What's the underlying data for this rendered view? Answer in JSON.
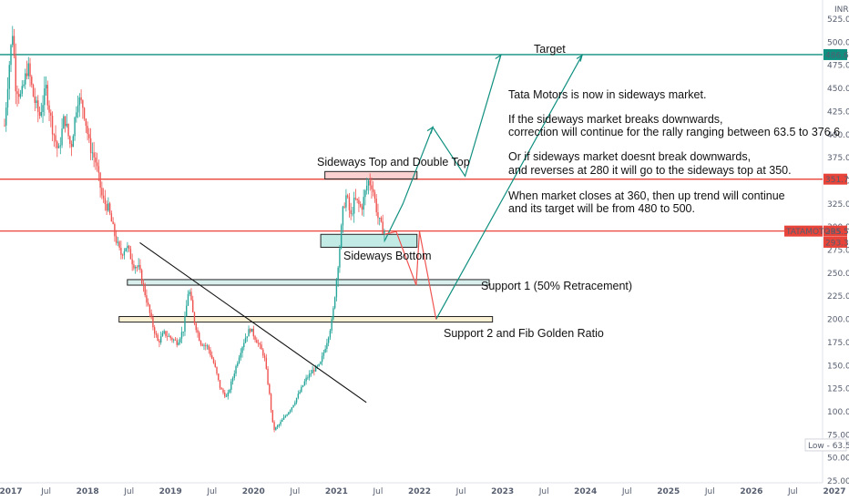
{
  "currency": "INR",
  "chart_data": {
    "type": "candlestick",
    "symbol": "TATAMOTORS",
    "x_ticks": [
      "2017",
      "Jul",
      "2018",
      "Jul",
      "2019",
      "Jul",
      "2020",
      "Jul",
      "2021",
      "Jul",
      "2022",
      "Jul",
      "2023",
      "Jul",
      "2024",
      "Jul",
      "2025",
      "Jul",
      "2026",
      "Jul",
      "2027"
    ],
    "y_ticks": [
      "525.00",
      "500.00",
      "475.00",
      "450.00",
      "425.00",
      "400.00",
      "375.00",
      "350.00",
      "325.00",
      "300.00",
      "275.00",
      "250.00",
      "225.00",
      "200.00",
      "175.00",
      "150.00",
      "125.00",
      "100.00",
      "75.00",
      "50.00",
      "25.00"
    ],
    "ylim": [
      25,
      540
    ],
    "price_labels": [
      {
        "text": "486.60",
        "value": 486.6,
        "color": "#0f8f7f"
      },
      {
        "text": "351.75",
        "value": 351.75,
        "color": "#e8443a"
      },
      {
        "text": "295.55",
        "value": 295.55,
        "color": "#e8443a"
      },
      {
        "text": "293.30",
        "value": 293.3,
        "color": "#e8443a"
      }
    ],
    "symbol_tag": "TATAMOTORS",
    "low_label": "Low - 63.50",
    "horizontal_lines": [
      {
        "value": 486.6,
        "color": "#0f8f7f"
      },
      {
        "value": 351.75,
        "color": "#e8443a"
      },
      {
        "value": 295.55,
        "color": "#e8443a"
      }
    ],
    "ohlc_path": [
      [
        2017.0,
        410
      ],
      [
        2017.05,
        470
      ],
      [
        2017.1,
        515
      ],
      [
        2017.13,
        455
      ],
      [
        2017.2,
        440
      ],
      [
        2017.28,
        475
      ],
      [
        2017.35,
        440
      ],
      [
        2017.42,
        420
      ],
      [
        2017.5,
        450
      ],
      [
        2017.57,
        410
      ],
      [
        2017.65,
        380
      ],
      [
        2017.72,
        420
      ],
      [
        2017.8,
        385
      ],
      [
        2017.88,
        440
      ],
      [
        2017.95,
        430
      ],
      [
        2018.02,
        390
      ],
      [
        2018.1,
        370
      ],
      [
        2018.18,
        330
      ],
      [
        2018.25,
        320
      ],
      [
        2018.33,
        290
      ],
      [
        2018.4,
        270
      ],
      [
        2018.47,
        280
      ],
      [
        2018.55,
        260
      ],
      [
        2018.62,
        255
      ],
      [
        2018.7,
        225
      ],
      [
        2018.78,
        195
      ],
      [
        2018.85,
        175
      ],
      [
        2018.92,
        185
      ],
      [
        2019.0,
        180
      ],
      [
        2019.08,
        175
      ],
      [
        2019.16,
        190
      ],
      [
        2019.22,
        235
      ],
      [
        2019.28,
        200
      ],
      [
        2019.36,
        175
      ],
      [
        2019.45,
        170
      ],
      [
        2019.53,
        150
      ],
      [
        2019.6,
        125
      ],
      [
        2019.68,
        115
      ],
      [
        2019.76,
        140
      ],
      [
        2019.84,
        165
      ],
      [
        2019.9,
        180
      ],
      [
        2019.96,
        190
      ],
      [
        2020.05,
        175
      ],
      [
        2020.13,
        160
      ],
      [
        2020.19,
        120
      ],
      [
        2020.24,
        80
      ],
      [
        2020.3,
        85
      ],
      [
        2020.38,
        95
      ],
      [
        2020.46,
        105
      ],
      [
        2020.55,
        120
      ],
      [
        2020.63,
        135
      ],
      [
        2020.72,
        145
      ],
      [
        2020.8,
        150
      ],
      [
        2020.88,
        175
      ],
      [
        2020.95,
        200
      ],
      [
        2021.03,
        270
      ],
      [
        2021.08,
        320
      ],
      [
        2021.12,
        335
      ],
      [
        2021.17,
        310
      ],
      [
        2021.22,
        330
      ],
      [
        2021.3,
        320
      ],
      [
        2021.38,
        350
      ],
      [
        2021.43,
        345
      ],
      [
        2021.5,
        310
      ],
      [
        2021.55,
        298
      ],
      [
        2021.58,
        295.55
      ]
    ],
    "annotations": {
      "target": "Target",
      "sideways_top": "Sideways Top and Double Top",
      "sideways_bottom": "Sideways Bottom",
      "support1": "Support 1 (50% Retracement)",
      "support2": "Support 2 and Fib Golden Ratio",
      "notes": [
        "Tata Motors is now in sideways market.",
        "",
        "If the sideways market breaks downwards,",
        "correction will continue for the rally ranging between 63.5 to 376.6",
        "",
        "Or if sideways market doesnt break downwards,",
        "and reverses at 280 it will go to the sideways top at 350.",
        "",
        "When market closes at 360, then up trend will continue",
        "and its target will be from 480 to 500."
      ]
    }
  },
  "colors": {
    "up": "#26a69a",
    "down": "#ef5350",
    "target": "#0f8f7f",
    "support2": "#f2b233",
    "resistance": "#e8443a"
  }
}
